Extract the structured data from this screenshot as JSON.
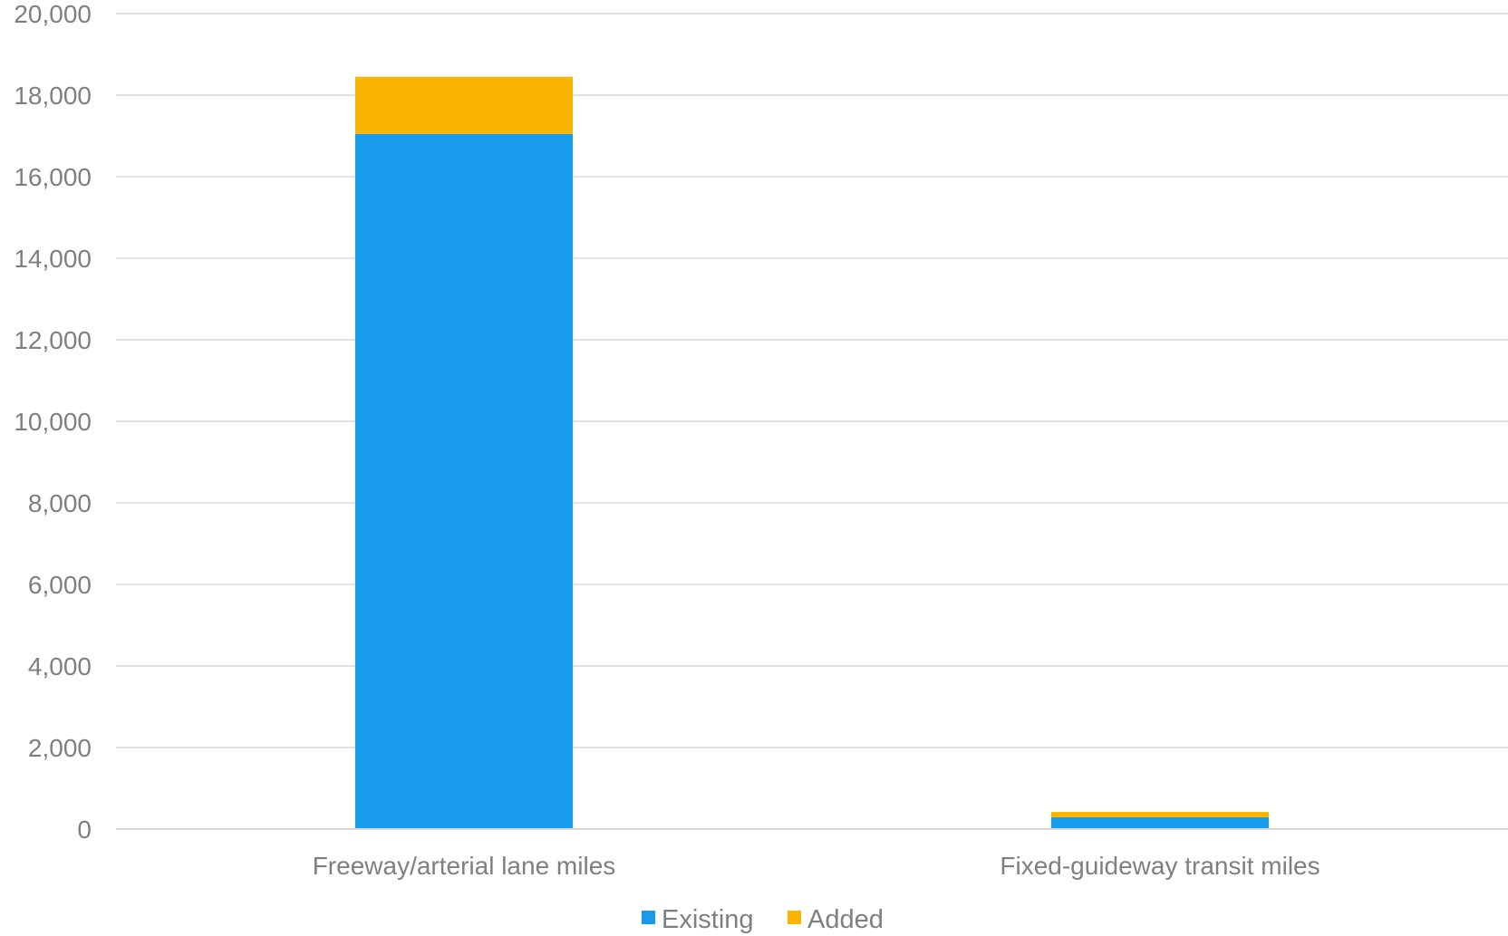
{
  "chart_data": {
    "type": "bar",
    "stacked": true,
    "categories": [
      "Freeway/arterial lane miles",
      "Fixed-guideway transit miles"
    ],
    "series": [
      {
        "name": "Existing",
        "color": "#179bea",
        "values": [
          17050,
          290
        ]
      },
      {
        "name": "Added",
        "color": "#fbb400",
        "values": [
          1400,
          130
        ]
      }
    ],
    "ylim": [
      0,
      20000
    ],
    "yticks": [
      0,
      2000,
      4000,
      6000,
      8000,
      10000,
      12000,
      14000,
      16000,
      18000,
      20000
    ],
    "ytick_labels": [
      "0",
      "2,000",
      "4,000",
      "6,000",
      "8,000",
      "10,000",
      "12,000",
      "14,000",
      "16,000",
      "18,000",
      "20,000"
    ],
    "grid": true,
    "legend_position": "bottom"
  }
}
